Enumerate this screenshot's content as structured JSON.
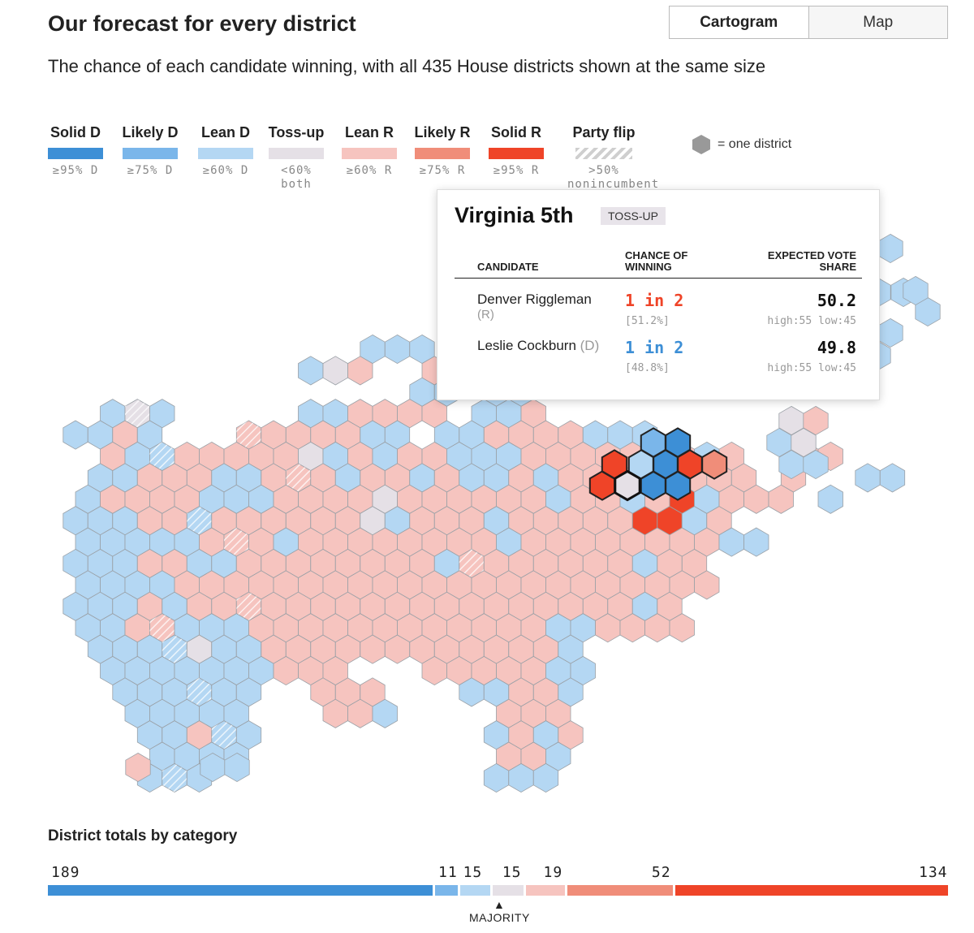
{
  "header": {
    "title": "Our forecast for every district",
    "subtitle": "The chance of each candidate winning, with all 435 House districts shown at the same size"
  },
  "view_toggle": {
    "options": [
      "Cartogram",
      "Map"
    ],
    "selected": "Cartogram"
  },
  "colors": {
    "solid_d": "#3d8fd6",
    "likely_d": "#7ab6ea",
    "lean_d": "#b4d7f3",
    "tossup": "#e5e0e6",
    "lean_r": "#f6c4bf",
    "likely_r": "#f08d79",
    "solid_r": "#ef4428"
  },
  "legend": {
    "items": [
      {
        "label": "Solid D",
        "threshold": "≥95% D",
        "color": "#3d8fd6"
      },
      {
        "label": "Likely D",
        "threshold": "≥75% D",
        "color": "#7ab6ea"
      },
      {
        "label": "Lean D",
        "threshold": "≥60% D",
        "color": "#b4d7f3"
      },
      {
        "label": "Toss-up",
        "threshold": "<60% both",
        "color": "#e5e0e6"
      },
      {
        "label": "Lean R",
        "threshold": "≥60% R",
        "color": "#f6c4bf"
      },
      {
        "label": "Likely R",
        "threshold": "≥75% R",
        "color": "#f08d79"
      },
      {
        "label": "Solid R",
        "threshold": "≥95% R",
        "color": "#ef4428"
      },
      {
        "label": "Party flip",
        "threshold": ">50% nonincumbent party",
        "color": "hatched"
      }
    ],
    "unit_note": "= one district"
  },
  "tooltip": {
    "district": "Virginia 5th",
    "rating": "TOSS-UP",
    "columns": {
      "candidate": "CANDIDATE",
      "chance": "CHANCE OF WINNING",
      "vote": "EXPECTED VOTE SHARE"
    },
    "candidates": [
      {
        "name": "Denver Riggleman",
        "party": "(R)",
        "chance": "1 in 2",
        "chance_pct": "[51.2%]",
        "vote_share": "50.2",
        "range": "high:55 low:45",
        "color": "#ef4428"
      },
      {
        "name": "Leslie Cockburn",
        "party": "(D)",
        "chance": "1 in 2",
        "chance_pct": "[48.8%]",
        "vote_share": "49.8",
        "range": "high:55 low:45",
        "color": "#3d8fd6"
      }
    ]
  },
  "totals": {
    "title": "District totals by category",
    "total_districts": 435,
    "categories": [
      {
        "key": "solid_d",
        "count": 189,
        "label": "189"
      },
      {
        "key": "likely_d",
        "count": 11,
        "label": "11"
      },
      {
        "key": "lean_d",
        "count": 15,
        "label": "15"
      },
      {
        "key": "tossup",
        "count": 15,
        "label": "15"
      },
      {
        "key": "lean_r",
        "count": 19,
        "label": "19"
      },
      {
        "key": "likely_r",
        "count": 52,
        "label": "52"
      },
      {
        "key": "solid_r",
        "count": 134,
        "label": "134"
      }
    ],
    "majority_label": "MAJORITY"
  }
}
